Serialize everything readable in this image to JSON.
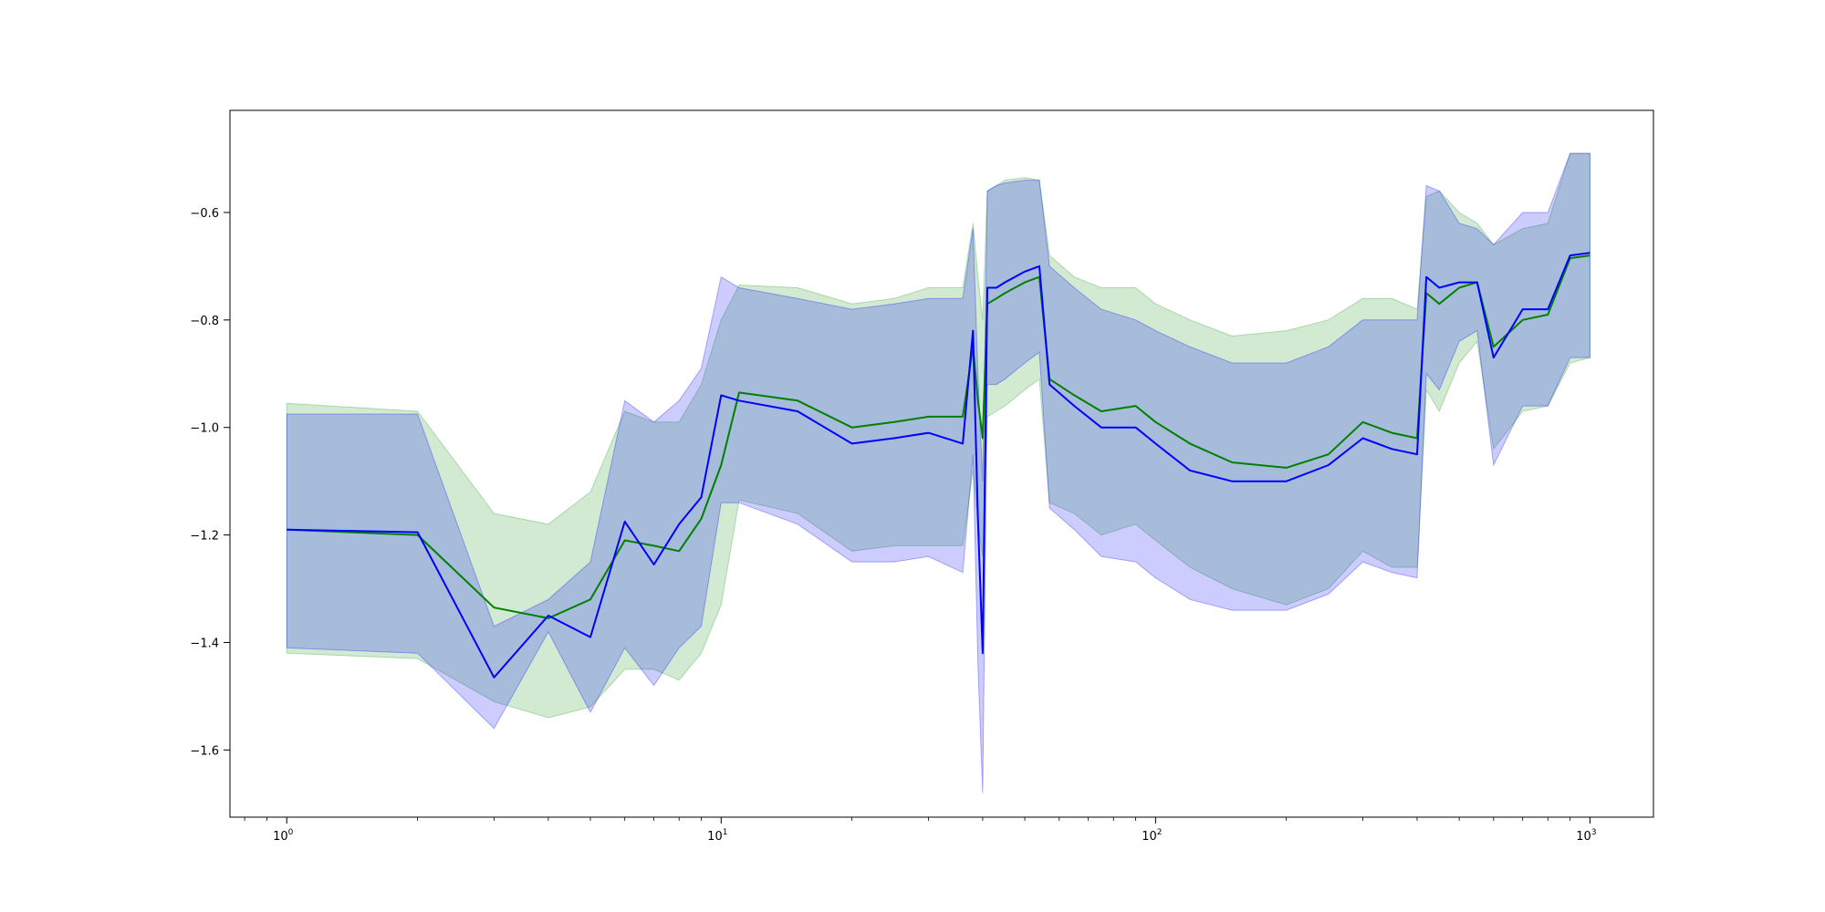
{
  "chart_data": {
    "type": "line",
    "title": "",
    "xlabel": "",
    "ylabel": "",
    "xscale": "log",
    "xlim": [
      0.74,
      1400
    ],
    "ylim": [
      -1.725,
      -0.41
    ],
    "grid": false,
    "legend": "none",
    "x_ticks": [
      {
        "value": 1,
        "base": "10",
        "exp": "0"
      },
      {
        "value": 10,
        "base": "10",
        "exp": "1"
      },
      {
        "value": 100,
        "base": "10",
        "exp": "2"
      },
      {
        "value": 1000,
        "base": "10",
        "exp": "3"
      }
    ],
    "y_ticks": [
      {
        "value": -0.6,
        "label": "−0.6"
      },
      {
        "value": -0.8,
        "label": "−0.8"
      },
      {
        "value": -1.0,
        "label": "−1.0"
      },
      {
        "value": -1.2,
        "label": "−1.2"
      },
      {
        "value": -1.4,
        "label": "−1.4"
      },
      {
        "value": -1.6,
        "label": "−1.6"
      }
    ],
    "series": [
      {
        "color": "#008000",
        "band_color": "#2ca02c",
        "band_opacity": 0.22,
        "x": [
          1,
          2,
          3,
          4,
          5,
          6,
          7,
          8,
          9,
          10,
          11,
          15,
          20,
          25,
          30,
          36,
          38,
          39,
          40,
          41,
          43,
          45,
          50,
          54,
          57,
          65,
          75,
          90,
          100,
          120,
          150,
          200,
          250,
          300,
          350,
          400,
          420,
          450,
          500,
          550,
          600,
          700,
          800,
          900,
          1000
        ],
        "y": [
          -1.19,
          -1.2,
          -1.335,
          -1.355,
          -1.32,
          -1.21,
          -1.22,
          -1.23,
          -1.17,
          -1.07,
          -0.935,
          -0.95,
          -1.0,
          -0.99,
          -0.98,
          -0.98,
          -0.85,
          -0.95,
          -1.02,
          -0.77,
          -0.76,
          -0.75,
          -0.73,
          -0.72,
          -0.91,
          -0.94,
          -0.97,
          -0.96,
          -0.99,
          -1.03,
          -1.065,
          -1.075,
          -1.05,
          -0.99,
          -1.01,
          -1.02,
          -0.75,
          -0.77,
          -0.74,
          -0.73,
          -0.85,
          -0.8,
          -0.79,
          -0.685,
          -0.68
        ],
        "upper": [
          -0.955,
          -0.97,
          -1.16,
          -1.18,
          -1.12,
          -0.97,
          -0.99,
          -0.99,
          -0.92,
          -0.8,
          -0.735,
          -0.74,
          -0.77,
          -0.76,
          -0.74,
          -0.74,
          -0.62,
          -0.72,
          -0.8,
          -0.56,
          -0.55,
          -0.54,
          -0.535,
          -0.54,
          -0.68,
          -0.72,
          -0.74,
          -0.74,
          -0.77,
          -0.8,
          -0.83,
          -0.82,
          -0.8,
          -0.76,
          -0.76,
          -0.78,
          -0.57,
          -0.56,
          -0.6,
          -0.62,
          -0.66,
          -0.63,
          -0.62,
          -0.49,
          -0.49
        ],
        "lower": [
          -1.42,
          -1.43,
          -1.51,
          -1.54,
          -1.52,
          -1.45,
          -1.45,
          -1.47,
          -1.42,
          -1.33,
          -1.135,
          -1.16,
          -1.23,
          -1.22,
          -1.22,
          -1.22,
          -1.08,
          -1.18,
          -1.24,
          -0.98,
          -0.97,
          -0.96,
          -0.93,
          -0.91,
          -1.14,
          -1.16,
          -1.2,
          -1.18,
          -1.21,
          -1.26,
          -1.3,
          -1.33,
          -1.3,
          -1.23,
          -1.26,
          -1.26,
          -0.93,
          -0.97,
          -0.88,
          -0.84,
          -1.04,
          -0.97,
          -0.96,
          -0.88,
          -0.87
        ]
      },
      {
        "color": "#0000ff",
        "band_color": "#0000ff",
        "band_opacity": 0.2,
        "x": [
          1,
          2,
          3,
          4,
          5,
          6,
          7,
          8,
          9,
          10,
          11,
          15,
          20,
          25,
          30,
          36,
          38,
          39,
          40,
          41,
          43,
          45,
          50,
          54,
          57,
          65,
          75,
          90,
          100,
          120,
          150,
          200,
          250,
          300,
          350,
          400,
          420,
          450,
          500,
          550,
          600,
          700,
          800,
          900,
          1000
        ],
        "y": [
          -1.19,
          -1.195,
          -1.465,
          -1.35,
          -1.39,
          -1.175,
          -1.255,
          -1.18,
          -1.13,
          -0.94,
          -0.95,
          -0.97,
          -1.03,
          -1.02,
          -1.01,
          -1.03,
          -0.82,
          -1.17,
          -1.42,
          -0.74,
          -0.74,
          -0.73,
          -0.71,
          -0.7,
          -0.92,
          -0.96,
          -1.0,
          -1.0,
          -1.03,
          -1.08,
          -1.1,
          -1.1,
          -1.07,
          -1.02,
          -1.04,
          -1.05,
          -0.72,
          -0.74,
          -0.73,
          -0.73,
          -0.87,
          -0.78,
          -0.78,
          -0.68,
          -0.675
        ],
        "upper": [
          -0.975,
          -0.975,
          -1.37,
          -1.32,
          -1.25,
          -0.95,
          -0.99,
          -0.95,
          -0.89,
          -0.72,
          -0.74,
          -0.76,
          -0.78,
          -0.77,
          -0.76,
          -0.76,
          -0.63,
          -0.9,
          -1.1,
          -0.56,
          -0.55,
          -0.545,
          -0.54,
          -0.54,
          -0.7,
          -0.74,
          -0.78,
          -0.8,
          -0.82,
          -0.85,
          -0.88,
          -0.88,
          -0.85,
          -0.8,
          -0.8,
          -0.8,
          -0.55,
          -0.56,
          -0.62,
          -0.63,
          -0.66,
          -0.6,
          -0.6,
          -0.49,
          -0.49
        ],
        "lower": [
          -1.41,
          -1.42,
          -1.56,
          -1.38,
          -1.53,
          -1.41,
          -1.48,
          -1.41,
          -1.37,
          -1.14,
          -1.14,
          -1.18,
          -1.25,
          -1.25,
          -1.24,
          -1.27,
          -1.05,
          -1.44,
          -1.68,
          -0.92,
          -0.92,
          -0.91,
          -0.88,
          -0.86,
          -1.15,
          -1.19,
          -1.24,
          -1.25,
          -1.28,
          -1.32,
          -1.34,
          -1.34,
          -1.31,
          -1.25,
          -1.27,
          -1.28,
          -0.9,
          -0.93,
          -0.84,
          -0.82,
          -1.07,
          -0.96,
          -0.96,
          -0.87,
          -0.87
        ]
      }
    ]
  }
}
